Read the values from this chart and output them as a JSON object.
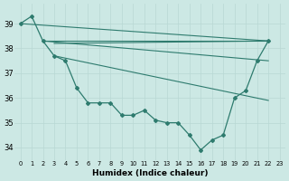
{
  "xlabel": "Humidex (Indice chaleur)",
  "bg_color": "#cce8e4",
  "grid_color": "#b8d8d4",
  "line_color": "#2e7b6e",
  "ylim": [
    33.5,
    39.8
  ],
  "yticks": [
    34,
    35,
    36,
    37,
    38,
    39
  ],
  "xlim": [
    -0.5,
    23.5
  ],
  "xticks": [
    0,
    1,
    2,
    3,
    4,
    5,
    6,
    7,
    8,
    9,
    10,
    11,
    12,
    13,
    14,
    15,
    16,
    17,
    18,
    19,
    20,
    21,
    22,
    23
  ],
  "main_x": [
    0,
    1,
    2,
    3,
    4,
    5,
    6,
    7,
    8,
    9,
    10,
    11,
    12,
    13,
    14,
    15,
    16,
    17,
    18,
    19,
    20,
    21,
    22
  ],
  "main_y": [
    39.0,
    39.3,
    38.3,
    37.7,
    37.5,
    36.4,
    35.8,
    35.8,
    35.8,
    35.3,
    35.3,
    35.5,
    35.1,
    35.0,
    35.0,
    34.5,
    33.9,
    34.3,
    34.5,
    36.0,
    36.3,
    37.5,
    38.3
  ],
  "straight_lines": [
    {
      "x": [
        0,
        22
      ],
      "y": [
        39.0,
        38.3
      ]
    },
    {
      "x": [
        2,
        22
      ],
      "y": [
        38.3,
        38.3
      ]
    },
    {
      "x": [
        3,
        22
      ],
      "y": [
        38.2,
        38.3
      ]
    },
    {
      "x": [
        2,
        22
      ],
      "y": [
        38.3,
        37.5
      ]
    },
    {
      "x": [
        3,
        22
      ],
      "y": [
        37.7,
        35.9
      ]
    }
  ]
}
